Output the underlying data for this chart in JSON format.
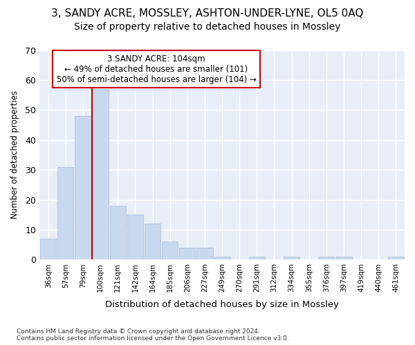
{
  "title1": "3, SANDY ACRE, MOSSLEY, ASHTON-UNDER-LYNE, OL5 0AQ",
  "title2": "Size of property relative to detached houses in Mossley",
  "xlabel": "Distribution of detached houses by size in Mossley",
  "ylabel": "Number of detached properties",
  "categories": [
    "36sqm",
    "57sqm",
    "79sqm",
    "100sqm",
    "121sqm",
    "142sqm",
    "164sqm",
    "185sqm",
    "206sqm",
    "227sqm",
    "249sqm",
    "270sqm",
    "291sqm",
    "312sqm",
    "334sqm",
    "355sqm",
    "376sqm",
    "397sqm",
    "419sqm",
    "440sqm",
    "461sqm"
  ],
  "values": [
    7,
    31,
    48,
    57,
    18,
    15,
    12,
    6,
    4,
    4,
    1,
    0,
    1,
    0,
    1,
    0,
    1,
    1,
    0,
    0,
    1
  ],
  "bar_color": "#c8d8ee",
  "bar_edge_color": "#aabbd8",
  "vline_x_index": 3,
  "vline_color": "#cc0000",
  "ylim": [
    0,
    70
  ],
  "yticks": [
    0,
    10,
    20,
    30,
    40,
    50,
    60,
    70
  ],
  "annotation_title": "3 SANDY ACRE: 104sqm",
  "annotation_line1": "← 49% of detached houses are smaller (101)",
  "annotation_line2": "50% of semi-detached houses are larger (104) →",
  "footer1": "Contains HM Land Registry data © Crown copyright and database right 2024.",
  "footer2": "Contains public sector information licensed under the Open Government Licence v3.0.",
  "bg_color": "#ffffff",
  "plot_bg_color": "#e8eef8",
  "grid_color": "#ffffff",
  "annotation_box_color": "#ffffff",
  "annotation_box_edge": "#cc0000",
  "title1_fontsize": 11,
  "title2_fontsize": 10
}
